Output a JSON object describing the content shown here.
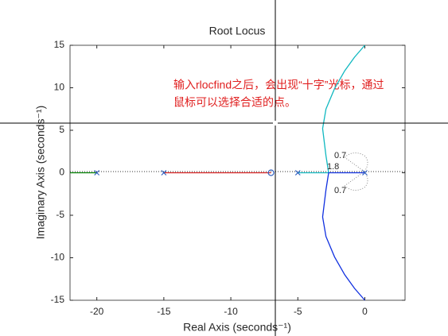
{
  "chart_data": {
    "type": "line",
    "title": "Root Locus",
    "xlabel": "Real Axis (seconds⁻¹)",
    "ylabel": "Imaginary Axis (seconds⁻¹)",
    "xlim": [
      -22,
      3
    ],
    "ylim": [
      -15,
      15
    ],
    "xticks": [
      -20,
      -15,
      -10,
      -5,
      0
    ],
    "yticks": [
      -15,
      -10,
      -5,
      0,
      5,
      10,
      15
    ],
    "series": [
      {
        "color": "#008000",
        "x": [
          -22,
          -20
        ],
        "y": [
          0,
          0
        ]
      },
      {
        "color": "#d62020",
        "x": [
          -15,
          -7
        ],
        "y": [
          0,
          0
        ]
      },
      {
        "color": "#10b8c0",
        "x": [
          -5,
          -2.7,
          -2.9,
          -3.15,
          -2.9,
          -2.26,
          -1.5,
          -0.77,
          0
        ],
        "y": [
          0,
          0,
          2,
          5.2,
          7.5,
          9.9,
          12,
          13.6,
          15
        ]
      },
      {
        "color": "#1030e0",
        "x": [
          0,
          -2.7,
          -2.9,
          -3.15,
          -2.9,
          -2.26,
          -1.5,
          -0.77,
          0
        ],
        "y": [
          0,
          0,
          -2,
          -5.2,
          -7.5,
          -9.9,
          -12,
          -13.6,
          -15
        ]
      }
    ],
    "poles": {
      "color": "#3060c0",
      "x": [
        -20,
        -15,
        -5,
        0
      ],
      "y": [
        0,
        0,
        0,
        0
      ]
    },
    "zeros": {
      "color": "#3060c0",
      "x": [
        -7
      ],
      "y": [
        0
      ]
    },
    "damping_labels": [
      "0.7",
      "1.8",
      "0.7"
    ],
    "annotation": [
      "输入rlocfind之后，会出现“十字”光标，通过",
      "鼠标可以选择合适的点。"
    ]
  }
}
